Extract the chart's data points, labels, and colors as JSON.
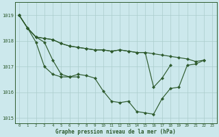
{
  "bg_color": "#cce8ec",
  "grid_color": "#aacccc",
  "line_color": "#2d5a2d",
  "xlabel": "Graphe pression niveau de la mer (hPa)",
  "ylim": [
    1014.8,
    1019.5
  ],
  "yticks": [
    1015,
    1016,
    1017,
    1018,
    1019
  ],
  "xticks": [
    0,
    1,
    2,
    3,
    4,
    5,
    6,
    7,
    8,
    9,
    10,
    11,
    12,
    13,
    14,
    15,
    16,
    17,
    18,
    19,
    20,
    21,
    22,
    23
  ],
  "series": [
    {
      "x": [
        0,
        1,
        2,
        3,
        4,
        5,
        6,
        7,
        8,
        9,
        10,
        11,
        12,
        13,
        14,
        15,
        16,
        17,
        18,
        19,
        20,
        21,
        22
      ],
      "y": [
        1019.0,
        1018.5,
        1018.15,
        1018.1,
        1018.05,
        1017.9,
        1017.8,
        1017.75,
        1017.7,
        1017.65,
        1017.65,
        1017.6,
        1017.65,
        1017.6,
        1017.55,
        1017.55,
        1017.5,
        1017.45,
        1017.4,
        1017.35,
        1017.3,
        1017.2,
        1017.25
      ]
    },
    {
      "x": [
        0,
        1,
        2,
        3,
        4,
        5,
        6,
        7,
        8,
        9,
        10,
        11,
        12,
        13,
        14,
        15,
        16,
        17,
        18
      ],
      "y": [
        1019.0,
        1018.5,
        1018.15,
        1018.1,
        1018.05,
        1017.9,
        1017.8,
        1017.75,
        1017.7,
        1017.65,
        1017.65,
        1017.6,
        1017.65,
        1017.6,
        1017.55,
        1017.55,
        1016.2,
        1016.55,
        1017.05
      ]
    },
    {
      "x": [
        0,
        1,
        2,
        3,
        4,
        5,
        6,
        7,
        8,
        9,
        10,
        11,
        12,
        13,
        14,
        15,
        16,
        17,
        18,
        19,
        20,
        21,
        22
      ],
      "y": [
        1019.0,
        1018.5,
        1017.95,
        1017.0,
        1016.7,
        1016.6,
        1016.6,
        1016.7,
        1016.65,
        1016.55,
        1016.05,
        1015.65,
        1015.6,
        1015.65,
        1015.25,
        1015.2,
        1015.15,
        1015.75,
        1016.15,
        1016.2,
        1017.05,
        1017.1,
        1017.25
      ]
    },
    {
      "x": [
        0,
        1,
        2,
        3,
        4,
        5,
        6,
        7
      ],
      "y": [
        1019.0,
        1018.5,
        1018.15,
        1017.95,
        1017.25,
        1016.7,
        1016.6,
        1016.6
      ]
    }
  ]
}
